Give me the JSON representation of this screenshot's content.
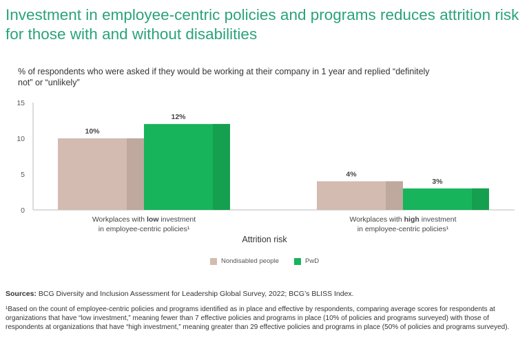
{
  "title": "Investment in employee-centric policies and programs reduces attrition risk for those with and without disabilities",
  "subtitle": "% of respondents who were asked if they would be working at their company in 1 year and replied “definitely not” or “unlikely”",
  "chart_data": {
    "type": "bar",
    "categories": [
      {
        "pre": "Workplaces with ",
        "bold": "low",
        "post": " investment",
        "line2": "in employee-centric policies¹"
      },
      {
        "pre": "Workplaces with ",
        "bold": "high",
        "post": " investment",
        "line2": "in employee-centric policies¹"
      }
    ],
    "series": [
      {
        "name": "Nondisabled people",
        "values": [
          10,
          4
        ],
        "labels": [
          "10%",
          "4%"
        ],
        "color": "#d3bbb1",
        "shade": "#bfa89e"
      },
      {
        "name": "PwD",
        "values": [
          12,
          3
        ],
        "labels": [
          "12%",
          "3%"
        ],
        "color": "#17b45b",
        "shade": "#14a04f"
      }
    ],
    "xlabel": "Attrition risk",
    "ylabel": "",
    "ylim": [
      0,
      15
    ],
    "yticks": [
      0,
      5,
      10,
      15
    ],
    "legend": "bottom-center"
  },
  "sources": {
    "label": "Sources:",
    "text": " BCG Diversity and Inclusion Assessment for Leadership Global Survey, 2022; BCG’s BLISS Index."
  },
  "footnote": "¹Based on the count of employee-centric policies and programs identified as in place and effective by respondents, comparing average scores for respondents at organizations that have “low investment,” meaning fewer than 7 effective policies and programs in place (10% of policies and programs surveyed) with those of respondents at organizations that have “high investment,” meaning greater than 29 effective policies and programs in place (50% of policies and programs surveyed)."
}
